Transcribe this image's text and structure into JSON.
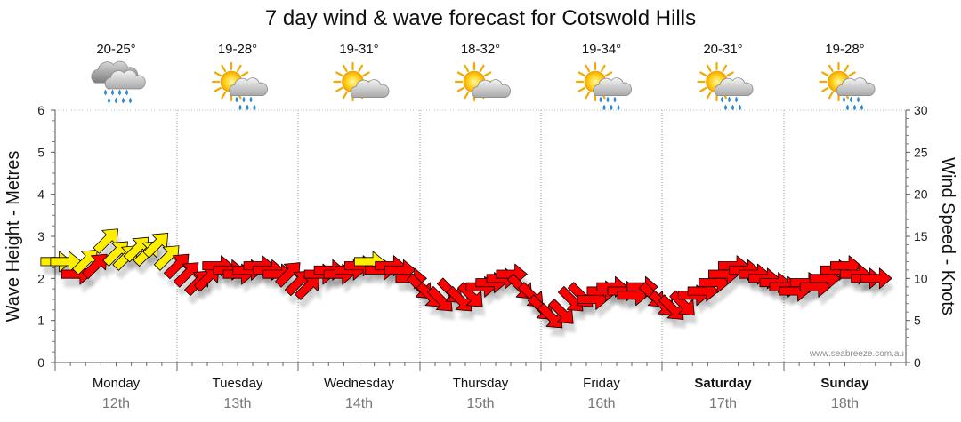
{
  "chart_data": {
    "type": "line",
    "title": "7 day wind & wave forecast for Cotswold Hills",
    "ylabel_left": "Wave Height - Metres",
    "ylabel_right": "Wind Speed - Knots",
    "y_left": {
      "min": 0,
      "max": 6,
      "ticks": [
        0,
        1,
        2,
        3,
        4,
        5,
        6
      ]
    },
    "y_right": {
      "min": 0,
      "max": 30,
      "ticks": [
        0,
        5,
        10,
        15,
        20,
        25,
        30
      ]
    },
    "days": [
      {
        "name": "Monday",
        "date": "12th",
        "temp": "20-25°",
        "icon": "rain-cloud-icon",
        "bold": false
      },
      {
        "name": "Tuesday",
        "date": "13th",
        "temp": "19-28°",
        "icon": "sun-showers-icon",
        "bold": false
      },
      {
        "name": "Wednesday",
        "date": "14th",
        "temp": "19-31°",
        "icon": "partly-cloudy-icon",
        "bold": false
      },
      {
        "name": "Thursday",
        "date": "15th",
        "temp": "18-32°",
        "icon": "partly-cloudy-icon",
        "bold": false
      },
      {
        "name": "Friday",
        "date": "16th",
        "temp": "19-34°",
        "icon": "sun-showers-icon",
        "bold": false
      },
      {
        "name": "Saturday",
        "date": "17th",
        "temp": "20-31°",
        "icon": "sun-showers-icon",
        "bold": true
      },
      {
        "name": "Sunday",
        "date": "18th",
        "temp": "19-28°",
        "icon": "sun-showers-icon",
        "bold": true
      }
    ],
    "wind_series": {
      "name": "Wind speed (knots) with direction arrows",
      "legend_colors": {
        "light": "#ffee00",
        "strong": "#ff0000"
      },
      "points": [
        {
          "t": 0.0,
          "speed": 12.0,
          "dir": "E"
        },
        {
          "t": 0.08,
          "speed": 12.0,
          "dir": "E"
        },
        {
          "t": 0.17,
          "speed": 10.5,
          "dir": "E"
        },
        {
          "t": 0.25,
          "speed": 12.0,
          "dir": "NE"
        },
        {
          "t": 0.33,
          "speed": 11.5,
          "dir": "NE"
        },
        {
          "t": 0.42,
          "speed": 14.5,
          "dir": "NE"
        },
        {
          "t": 0.5,
          "speed": 13.0,
          "dir": "NE"
        },
        {
          "t": 0.58,
          "speed": 12.5,
          "dir": "NE"
        },
        {
          "t": 0.67,
          "speed": 13.5,
          "dir": "NE"
        },
        {
          "t": 0.75,
          "speed": 13.0,
          "dir": "NE"
        },
        {
          "t": 0.83,
          "speed": 14.0,
          "dir": "NE"
        },
        {
          "t": 0.92,
          "speed": 12.5,
          "dir": "NE"
        },
        {
          "t": 1.0,
          "speed": 11.5,
          "dir": "NE"
        },
        {
          "t": 1.08,
          "speed": 10.5,
          "dir": "NE"
        },
        {
          "t": 1.17,
          "speed": 9.5,
          "dir": "NE"
        },
        {
          "t": 1.25,
          "speed": 10.0,
          "dir": "NE"
        },
        {
          "t": 1.33,
          "speed": 11.5,
          "dir": "E"
        },
        {
          "t": 1.42,
          "speed": 11.0,
          "dir": "E"
        },
        {
          "t": 1.5,
          "speed": 10.5,
          "dir": "E"
        },
        {
          "t": 1.58,
          "speed": 11.0,
          "dir": "E"
        },
        {
          "t": 1.67,
          "speed": 11.5,
          "dir": "E"
        },
        {
          "t": 1.75,
          "speed": 11.0,
          "dir": "E"
        },
        {
          "t": 1.83,
          "speed": 10.5,
          "dir": "E"
        },
        {
          "t": 1.92,
          "speed": 10.5,
          "dir": "NE"
        },
        {
          "t": 2.0,
          "speed": 9.5,
          "dir": "NE"
        },
        {
          "t": 2.08,
          "speed": 9.0,
          "dir": "NE"
        },
        {
          "t": 2.17,
          "speed": 10.5,
          "dir": "E"
        },
        {
          "t": 2.25,
          "speed": 11.0,
          "dir": "E"
        },
        {
          "t": 2.33,
          "speed": 10.5,
          "dir": "E"
        },
        {
          "t": 2.42,
          "speed": 11.0,
          "dir": "E"
        },
        {
          "t": 2.5,
          "speed": 11.5,
          "dir": "E"
        },
        {
          "t": 2.58,
          "speed": 12.0,
          "dir": "E"
        },
        {
          "t": 2.67,
          "speed": 11.0,
          "dir": "E"
        },
        {
          "t": 2.75,
          "speed": 11.5,
          "dir": "E"
        },
        {
          "t": 2.83,
          "speed": 11.0,
          "dir": "E"
        },
        {
          "t": 2.92,
          "speed": 10.0,
          "dir": "E"
        },
        {
          "t": 3.0,
          "speed": 9.0,
          "dir": "SE"
        },
        {
          "t": 3.08,
          "speed": 8.0,
          "dir": "SE"
        },
        {
          "t": 3.17,
          "speed": 7.5,
          "dir": "SE"
        },
        {
          "t": 3.25,
          "speed": 8.5,
          "dir": "SE"
        },
        {
          "t": 3.33,
          "speed": 7.5,
          "dir": "SE"
        },
        {
          "t": 3.42,
          "speed": 8.0,
          "dir": "SE"
        },
        {
          "t": 3.5,
          "speed": 9.0,
          "dir": "E"
        },
        {
          "t": 3.58,
          "speed": 9.5,
          "dir": "E"
        },
        {
          "t": 3.67,
          "speed": 10.0,
          "dir": "E"
        },
        {
          "t": 3.75,
          "speed": 10.5,
          "dir": "E"
        },
        {
          "t": 3.83,
          "speed": 9.0,
          "dir": "SE"
        },
        {
          "t": 3.92,
          "speed": 8.0,
          "dir": "SE"
        },
        {
          "t": 4.0,
          "speed": 6.5,
          "dir": "SE"
        },
        {
          "t": 4.08,
          "speed": 5.5,
          "dir": "SE"
        },
        {
          "t": 4.17,
          "speed": 6.0,
          "dir": "SE"
        },
        {
          "t": 4.25,
          "speed": 7.5,
          "dir": "SE"
        },
        {
          "t": 4.33,
          "speed": 8.0,
          "dir": "SE"
        },
        {
          "t": 4.42,
          "speed": 7.5,
          "dir": "E"
        },
        {
          "t": 4.5,
          "speed": 8.5,
          "dir": "E"
        },
        {
          "t": 4.58,
          "speed": 9.0,
          "dir": "E"
        },
        {
          "t": 4.67,
          "speed": 8.5,
          "dir": "E"
        },
        {
          "t": 4.75,
          "speed": 8.0,
          "dir": "E"
        },
        {
          "t": 4.83,
          "speed": 9.0,
          "dir": "E"
        },
        {
          "t": 4.92,
          "speed": 8.0,
          "dir": "SE"
        },
        {
          "t": 5.0,
          "speed": 7.0,
          "dir": "SE"
        },
        {
          "t": 5.08,
          "speed": 6.5,
          "dir": "SE"
        },
        {
          "t": 5.17,
          "speed": 7.0,
          "dir": "SE"
        },
        {
          "t": 5.25,
          "speed": 8.0,
          "dir": "E"
        },
        {
          "t": 5.33,
          "speed": 8.5,
          "dir": "E"
        },
        {
          "t": 5.42,
          "speed": 9.5,
          "dir": "E"
        },
        {
          "t": 5.5,
          "speed": 10.5,
          "dir": "E"
        },
        {
          "t": 5.58,
          "speed": 11.5,
          "dir": "E"
        },
        {
          "t": 5.67,
          "speed": 11.0,
          "dir": "E"
        },
        {
          "t": 5.75,
          "speed": 10.5,
          "dir": "E"
        },
        {
          "t": 5.83,
          "speed": 10.0,
          "dir": "E"
        },
        {
          "t": 5.92,
          "speed": 9.5,
          "dir": "E"
        },
        {
          "t": 6.0,
          "speed": 9.0,
          "dir": "E"
        },
        {
          "t": 6.08,
          "speed": 8.5,
          "dir": "E"
        },
        {
          "t": 6.17,
          "speed": 9.5,
          "dir": "E"
        },
        {
          "t": 6.25,
          "speed": 9.0,
          "dir": "E"
        },
        {
          "t": 6.33,
          "speed": 10.0,
          "dir": "E"
        },
        {
          "t": 6.42,
          "speed": 11.0,
          "dir": "E"
        },
        {
          "t": 6.5,
          "speed": 11.5,
          "dir": "E"
        },
        {
          "t": 6.58,
          "speed": 10.5,
          "dir": "E"
        },
        {
          "t": 6.67,
          "speed": 10.0,
          "dir": "E"
        },
        {
          "t": 6.75,
          "speed": 10.0,
          "dir": "E"
        }
      ]
    },
    "credit": "www.seabreeze.com.au"
  }
}
